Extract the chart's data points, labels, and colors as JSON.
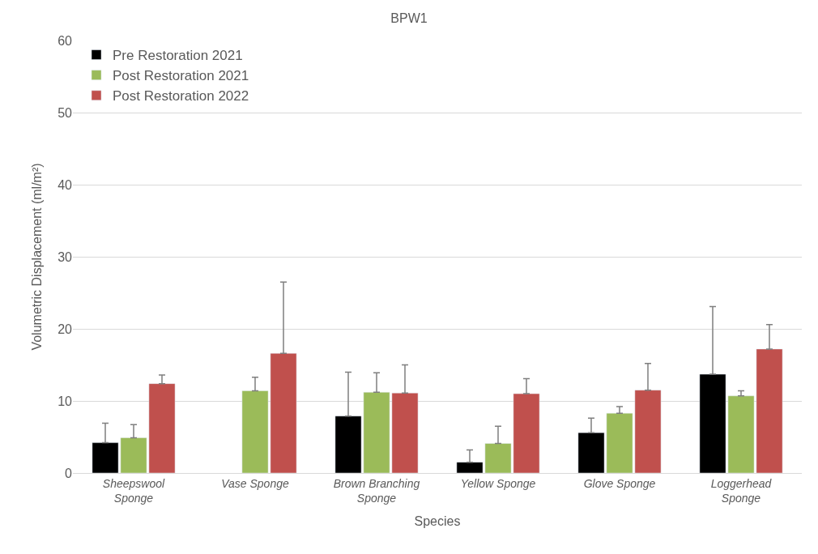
{
  "chart_data": {
    "type": "bar",
    "title": "BPW1",
    "xlabel": "Species",
    "ylabel": "Volumetric Displacement (ml/m²)",
    "categories": [
      "Sheepswool Sponge",
      "Vase Sponge",
      "Brown Branching Sponge",
      "Yellow Sponge",
      "Glove Sponge",
      "Loggerhead Sponge"
    ],
    "series": [
      {
        "name": "Pre Restoration 2021",
        "color": "#000000",
        "values": [
          4.2,
          null,
          7.9,
          1.5,
          5.6,
          13.7
        ],
        "errors": [
          [
            4.2,
            6.9
          ],
          null,
          [
            7.9,
            14.0
          ],
          [
            1.5,
            3.2
          ],
          [
            5.6,
            7.6
          ],
          [
            13.7,
            23.1
          ]
        ]
      },
      {
        "name": "Post Restoration 2021",
        "color": "#9bbb59",
        "values": [
          4.9,
          11.4,
          11.2,
          4.1,
          8.3,
          10.7
        ],
        "errors": [
          [
            4.9,
            6.7
          ],
          [
            11.4,
            13.3
          ],
          [
            11.2,
            13.9
          ],
          [
            4.1,
            6.5
          ],
          [
            8.3,
            9.2
          ],
          [
            10.7,
            11.4
          ]
        ]
      },
      {
        "name": "Post Restoration 2022",
        "color": "#c0504d",
        "values": [
          12.4,
          16.6,
          11.1,
          11.0,
          11.5,
          17.2
        ],
        "errors": [
          [
            12.4,
            13.6
          ],
          [
            16.6,
            26.5
          ],
          [
            11.1,
            15.0
          ],
          [
            11.0,
            13.1
          ],
          [
            11.5,
            15.2
          ],
          [
            17.2,
            20.6
          ]
        ]
      }
    ],
    "ylim": [
      0,
      60
    ],
    "yticks": [
      0,
      10,
      20,
      30,
      40,
      50,
      60
    ],
    "grid": "y",
    "legend": "top left"
  }
}
